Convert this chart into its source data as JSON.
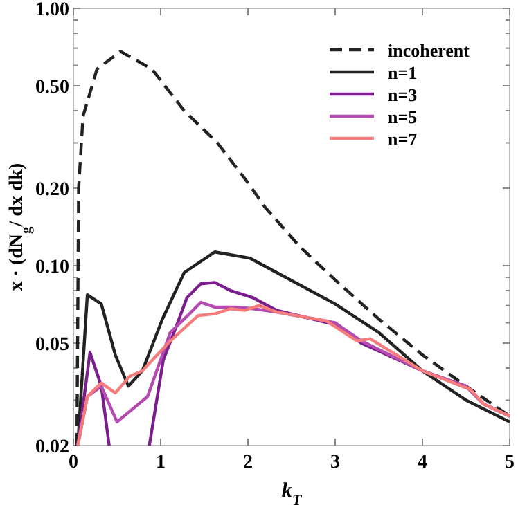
{
  "chart_data": {
    "type": "line",
    "xlabel": "k$_{T}$",
    "ylabel": "x · (dN$_{g}$/ dx dk)",
    "log": "y",
    "xlim": [
      0,
      5
    ],
    "xticks": [
      0,
      1,
      2,
      3,
      4,
      5
    ],
    "ylim": [
      0.02,
      1
    ],
    "yticks": [
      {
        "value": 0.02,
        "label": "0.02"
      },
      {
        "value": 0.03,
        "label": null
      },
      {
        "value": 0.04,
        "label": null
      },
      {
        "value": 0.05,
        "label": "0.05"
      },
      {
        "value": 0.06,
        "label": null
      },
      {
        "value": 0.07,
        "label": null
      },
      {
        "value": 0.08,
        "label": null
      },
      {
        "value": 0.09,
        "label": null
      },
      {
        "value": 0.1,
        "label": "0.10"
      },
      {
        "value": 0.2,
        "label": "0.20"
      },
      {
        "value": 0.3,
        "label": null
      },
      {
        "value": 0.4,
        "label": null
      },
      {
        "value": 0.5,
        "label": "0.50"
      },
      {
        "value": 0.6,
        "label": null
      },
      {
        "value": 0.7,
        "label": null
      },
      {
        "value": 0.8,
        "label": null
      },
      {
        "value": 0.9,
        "label": null
      },
      {
        "value": 1,
        "label": "1.00"
      }
    ],
    "grid": false,
    "legend": "top right",
    "series": [
      {
        "name": "incoherent",
        "color": "#222222",
        "line_style": "dashed",
        "x": [
          0.04,
          0.06,
          0.11,
          0.27,
          0.54,
          0.9,
          1.27,
          1.65,
          2.0,
          2.2,
          2.6,
          3.0,
          3.5,
          4.0,
          4.5,
          5.0
        ],
        "values": [
          0.02,
          0.2,
          0.38,
          0.58,
          0.68,
          0.58,
          0.4,
          0.3,
          0.21,
          0.168,
          0.118,
          0.088,
          0.062,
          0.045,
          0.034,
          0.026
        ]
      },
      {
        "name": "n=1",
        "color": "#222222",
        "line_style": "solid",
        "x": [
          0.05,
          0.16,
          0.32,
          0.48,
          0.63,
          0.79,
          1.02,
          1.27,
          1.62,
          2.02,
          2.33,
          3.0,
          3.5,
          4.0,
          4.5,
          5.0
        ],
        "values": [
          0.02,
          0.077,
          0.071,
          0.045,
          0.034,
          0.039,
          0.062,
          0.094,
          0.113,
          0.107,
          0.094,
          0.071,
          0.055,
          0.039,
          0.03,
          0.0247
        ]
      },
      {
        "name": "n=3",
        "color": "#7b1f8c",
        "line_style": "solid",
        "x": [
          0.05,
          0.19,
          0.32,
          0.41,
          0.6,
          0.87,
          1.03,
          1.17,
          1.3,
          1.46,
          1.62,
          1.8,
          2.06,
          2.33,
          3.0,
          3.3,
          4.0,
          4.5,
          4.7,
          5.0
        ],
        "values": [
          0.02,
          0.046,
          0.034,
          0.02,
          null,
          0.02,
          0.043,
          0.057,
          0.075,
          0.085,
          0.086,
          0.08,
          0.075,
          0.067,
          0.059,
          0.05,
          0.039,
          0.034,
          0.029,
          0.026
        ]
      },
      {
        "name": "n=5",
        "color": "#b44bb0",
        "line_style": "solid",
        "x": [
          0.05,
          0.16,
          0.32,
          0.5,
          0.85,
          1.11,
          1.33,
          1.46,
          1.62,
          1.85,
          2.06,
          2.33,
          3.0,
          3.3,
          4.0,
          4.5,
          4.7,
          5.0
        ],
        "values": [
          0.02,
          0.031,
          0.034,
          0.0247,
          0.031,
          0.055,
          0.065,
          0.072,
          0.069,
          0.069,
          0.068,
          0.066,
          0.06,
          0.051,
          0.039,
          0.034,
          0.029,
          0.026
        ]
      },
      {
        "name": "n=7",
        "color": "#f47c7c",
        "line_style": "solid",
        "x": [
          0.05,
          0.16,
          0.32,
          0.48,
          0.64,
          0.79,
          1.11,
          1.43,
          1.62,
          1.8,
          1.96,
          2.13,
          2.33,
          2.9,
          3.25,
          3.4,
          4.0,
          4.55,
          4.7,
          5.0
        ],
        "values": [
          0.02,
          0.031,
          0.035,
          0.032,
          0.037,
          0.039,
          0.051,
          0.064,
          0.065,
          0.068,
          0.067,
          0.07,
          0.066,
          0.061,
          0.051,
          0.052,
          0.039,
          0.033,
          0.029,
          0.026
        ]
      }
    ]
  }
}
